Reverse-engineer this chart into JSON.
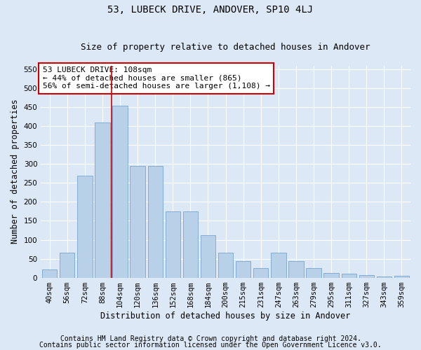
{
  "title": "53, LUBECK DRIVE, ANDOVER, SP10 4LJ",
  "subtitle": "Size of property relative to detached houses in Andover",
  "xlabel": "Distribution of detached houses by size in Andover",
  "ylabel": "Number of detached properties",
  "footer_line1": "Contains HM Land Registry data © Crown copyright and database right 2024.",
  "footer_line2": "Contains public sector information licensed under the Open Government Licence v3.0.",
  "bin_labels": [
    "40sqm",
    "56sqm",
    "72sqm",
    "88sqm",
    "104sqm",
    "120sqm",
    "136sqm",
    "152sqm",
    "168sqm",
    "184sqm",
    "200sqm",
    "215sqm",
    "231sqm",
    "247sqm",
    "263sqm",
    "279sqm",
    "295sqm",
    "311sqm",
    "327sqm",
    "343sqm",
    "359sqm"
  ],
  "bar_values": [
    22,
    65,
    270,
    410,
    455,
    295,
    295,
    175,
    175,
    112,
    65,
    43,
    25,
    65,
    43,
    25,
    12,
    10,
    6,
    3,
    5
  ],
  "bar_color": "#b8d0e8",
  "bar_edge_color": "#6699cc",
  "vline_x_index": 4,
  "vline_color": "#cc0000",
  "annotation_line1": "53 LUBECK DRIVE: 108sqm",
  "annotation_line2": "← 44% of detached houses are smaller (865)",
  "annotation_line3": "56% of semi-detached houses are larger (1,108) →",
  "annotation_box_color": "#ffffff",
  "annotation_box_edge_color": "#cc0000",
  "ylim": [
    0,
    560
  ],
  "yticks": [
    0,
    50,
    100,
    150,
    200,
    250,
    300,
    350,
    400,
    450,
    500,
    550
  ],
  "background_color": "#dce8f5",
  "plot_background_color": "#dce8f5",
  "grid_color": "#ffffff",
  "title_fontsize": 10,
  "subtitle_fontsize": 9,
  "axis_label_fontsize": 8.5,
  "tick_fontsize": 7.5,
  "annotation_fontsize": 8,
  "footer_fontsize": 7
}
